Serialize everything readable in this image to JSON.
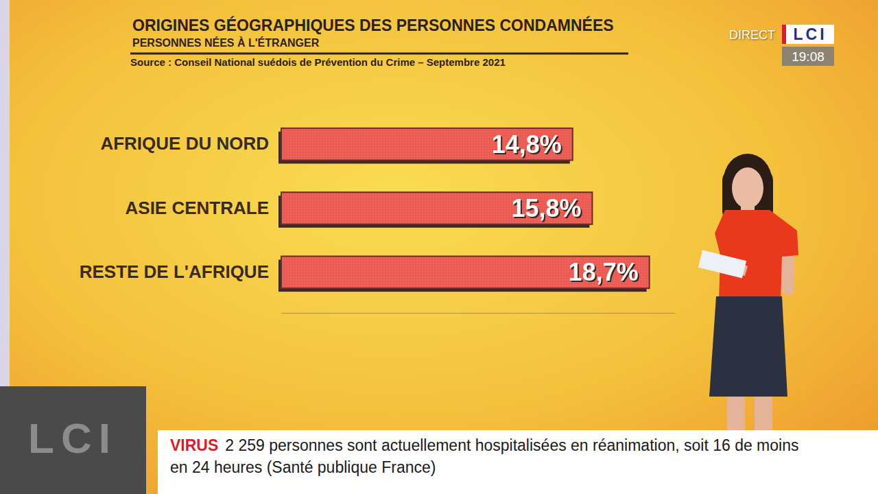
{
  "chart_data": {
    "type": "bar",
    "title": "ORIGINES GÉOGRAPHIQUES DES PERSONNES CONDAMNÉES",
    "subtitle": "PERSONNES NÉES À L'ÉTRANGER",
    "source": "Source : Conseil National suédois de Prévention du Crime – Septembre 2021",
    "categories": [
      "AFRIQUE DU NORD",
      "ASIE CENTRALE",
      "RESTE DE L'AFRIQUE"
    ],
    "values": [
      14.8,
      15.8,
      18.7
    ],
    "value_labels": [
      "14,8%",
      "15,8%",
      "18,7%"
    ],
    "color": "#ee5f57",
    "orientation": "horizontal",
    "data_labels": true,
    "tick_labels": "y",
    "grid": false,
    "xlim": [
      0,
      20
    ],
    "xticks": []
  },
  "broadcast": {
    "live": "DIRECT",
    "channel": "LCI",
    "time": "19:08",
    "corner_logo": "LCI",
    "ticker": {
      "label": "VIRUS",
      "text": "2 259 personnes sont actuellement hospitalisées en réanimation, soit 16 de moins en 24 heures (Santé publique France)"
    }
  }
}
